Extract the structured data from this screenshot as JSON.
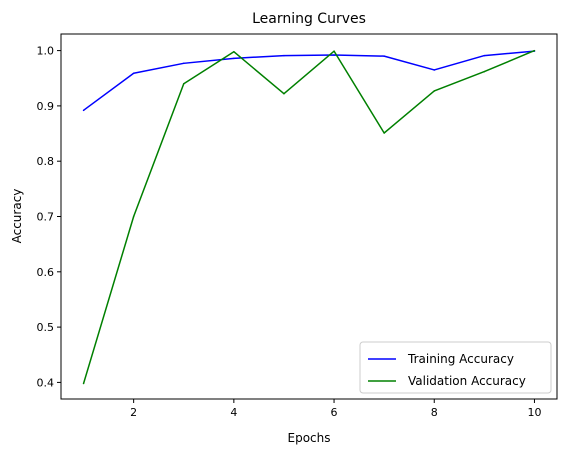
{
  "chart_data": {
    "type": "line",
    "title": "Learning Curves",
    "xlabel": "Epochs",
    "ylabel": "Accuracy",
    "x": [
      1,
      2,
      3,
      4,
      5,
      6,
      7,
      8,
      9,
      10
    ],
    "xlim": [
      0.55,
      10.45
    ],
    "ylim": [
      0.37,
      1.03
    ],
    "xticks": [
      2,
      4,
      6,
      8,
      10
    ],
    "xtick_labels": [
      "2",
      "4",
      "6",
      "8",
      "10"
    ],
    "yticks": [
      0.4,
      0.5,
      0.6,
      0.7,
      0.8,
      0.9,
      1.0
    ],
    "ytick_labels": [
      "0.4",
      "0.5",
      "0.6",
      "0.7",
      "0.8",
      "0.9",
      "1.0"
    ],
    "grid": false,
    "legend_position": "lower-right",
    "series": [
      {
        "name": "Training Accuracy",
        "color": "#0000ff",
        "values": [
          0.892,
          0.959,
          0.977,
          0.986,
          0.991,
          0.992,
          0.99,
          0.965,
          0.991,
          0.999
        ]
      },
      {
        "name": "Validation Accuracy",
        "color": "#008000",
        "values": [
          0.398,
          0.7,
          0.94,
          0.998,
          0.922,
          0.999,
          0.851,
          0.927,
          0.962,
          1.0
        ]
      }
    ]
  }
}
